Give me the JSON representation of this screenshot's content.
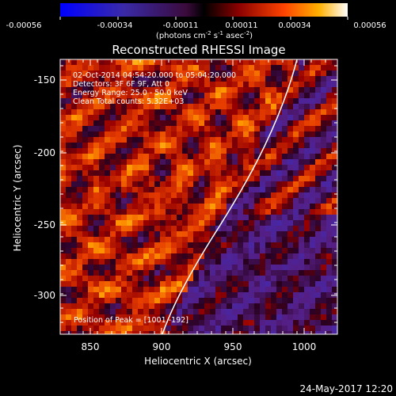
{
  "colorbar": {
    "ticks": [
      "-0.00056",
      "-0.00034",
      "-0.00011",
      "0.00011",
      "0.00034",
      "0.00056"
    ],
    "unit_main": "(photons cm",
    "unit_exp1": "-2",
    "unit_s": " s",
    "unit_exp2": "-1",
    "unit_asec": " asec",
    "unit_exp3": "-2",
    "unit_close": ")"
  },
  "plot": {
    "title": "Reconstructed RHESSI Image",
    "xlabel": "Heliocentric X (arcsec)",
    "ylabel": "Heliocentric Y (arcsec)",
    "xticks": [
      "850",
      "900",
      "950",
      "1000"
    ],
    "yticks": [
      "-150",
      "-200",
      "-250",
      "-300"
    ],
    "info": [
      "02-Oct-2014 04:54:20.000 to 05:04:20.000",
      "Detectors: 3F 6F 9F, Att 0",
      "Energy Range: 25.0 - 50.0 keV",
      "Clean    Total counts: 5.32E+03"
    ],
    "peak": "Position of Peak = [1001,-192]"
  },
  "footer": {
    "timestamp": "24-May-2017 12:20"
  },
  "colors": {
    "background": "#000000",
    "limb": "#ffffff"
  }
}
